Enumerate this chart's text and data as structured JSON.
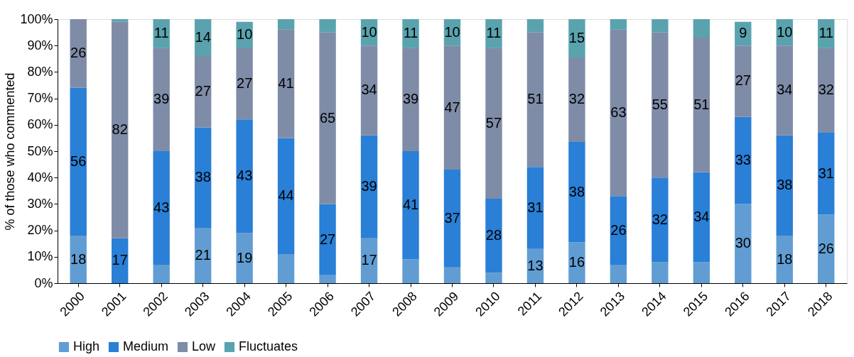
{
  "chart_data": {
    "type": "bar",
    "stacked": true,
    "ylabel": "% of those who commented",
    "categories": [
      "2000",
      "2001",
      "2002",
      "2003",
      "2004",
      "2005",
      "2006",
      "2007",
      "2008",
      "2009",
      "2010",
      "2011",
      "2012",
      "2013",
      "2014",
      "2015",
      "2016",
      "2017",
      "2018"
    ],
    "series": [
      {
        "name": "High",
        "color": "#619dd3",
        "values": [
          18,
          0,
          7,
          21,
          19,
          11,
          3,
          17,
          9,
          6,
          4,
          13,
          15.5,
          7,
          8,
          8,
          30,
          18,
          26
        ],
        "value_labels": [
          "18",
          null,
          null,
          "21",
          "19",
          null,
          null,
          "17",
          null,
          null,
          null,
          "13",
          "16",
          null,
          null,
          null,
          "30",
          "18",
          "26"
        ]
      },
      {
        "name": "Medium",
        "color": "#2a7fd6",
        "values": [
          56,
          17,
          43,
          38,
          43,
          44,
          27,
          39,
          41,
          37,
          28,
          31,
          38,
          26,
          32,
          34,
          33,
          38,
          31
        ],
        "value_labels": [
          "56",
          "17",
          "43",
          "38",
          "43",
          "44",
          "27",
          "39",
          "41",
          "37",
          "28",
          "31",
          "38",
          "26",
          "32",
          "34",
          "33",
          "38",
          "31"
        ]
      },
      {
        "name": "Low",
        "color": "#7f8ca8",
        "values": [
          26,
          82,
          39,
          27,
          27,
          41,
          65,
          34,
          39,
          47,
          57,
          51,
          32,
          63,
          55,
          51,
          27,
          34,
          32
        ],
        "value_labels": [
          "26",
          "82",
          "39",
          "27",
          "27",
          "41",
          "65",
          "34",
          "39",
          "47",
          "57",
          "51",
          "32",
          "63",
          "55",
          "51",
          "27",
          "34",
          "32"
        ]
      },
      {
        "name": "Fluctuates",
        "color": "#5aa3ae",
        "values": [
          0,
          1,
          11,
          14,
          10,
          4,
          5,
          10,
          11,
          10,
          11,
          5,
          14.5,
          4,
          5,
          7,
          9,
          10,
          11
        ],
        "value_labels": [
          null,
          null,
          "11",
          "14",
          "10",
          null,
          null,
          "10",
          "11",
          "10",
          "11",
          null,
          "15",
          null,
          null,
          null,
          "9",
          "10",
          "11"
        ]
      }
    ],
    "ylim": [
      0,
      100
    ],
    "yticks": [
      {
        "value": 0,
        "label": "0%"
      },
      {
        "value": 10,
        "label": "10%"
      },
      {
        "value": 20,
        "label": "20%"
      },
      {
        "value": 30,
        "label": "30%"
      },
      {
        "value": 40,
        "label": "40%"
      },
      {
        "value": 50,
        "label": "50%"
      },
      {
        "value": 60,
        "label": "60%"
      },
      {
        "value": 70,
        "label": "70%"
      },
      {
        "value": 80,
        "label": "80%"
      },
      {
        "value": 90,
        "label": "90%"
      },
      {
        "value": 100,
        "label": "100%"
      }
    ],
    "grid": false,
    "legend": "bottom"
  }
}
